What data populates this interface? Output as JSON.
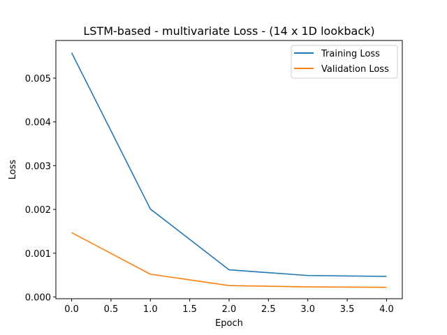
{
  "chart_data": {
    "type": "line",
    "title": "LSTM-based - multivariate Loss - (14 x 1D lookback)",
    "xlabel": "Epoch",
    "ylabel": "Loss",
    "x": [
      0,
      1,
      2,
      3,
      4
    ],
    "series": [
      {
        "name": "Training Loss",
        "color": "#1f77b4",
        "values": [
          0.00558,
          0.00201,
          0.00062,
          0.00049,
          0.00047
        ]
      },
      {
        "name": "Validation Loss",
        "color": "#ff7f0e",
        "values": [
          0.00147,
          0.00052,
          0.00026,
          0.00023,
          0.00022
        ]
      }
    ],
    "xlim": [
      -0.2,
      4.2
    ],
    "ylim": [
      -4e-05,
      0.00586
    ],
    "xticks": [
      "0.0",
      "0.5",
      "1.0",
      "1.5",
      "2.0",
      "2.5",
      "3.0",
      "3.5",
      "4.0"
    ],
    "yticks": [
      "0.000",
      "0.001",
      "0.002",
      "0.003",
      "0.004",
      "0.005"
    ],
    "grid": false,
    "legend_position": "top-right"
  }
}
